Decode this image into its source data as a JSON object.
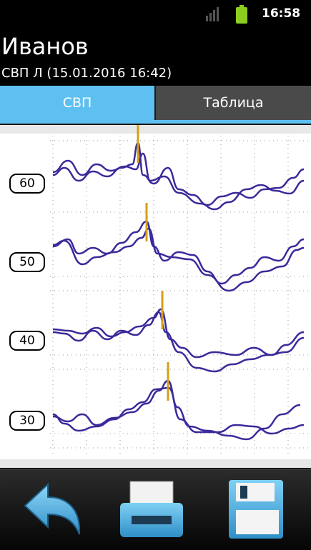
{
  "status": {
    "time": "16:58",
    "icons": [
      "signal-icon",
      "battery-icon"
    ]
  },
  "header": {
    "patient_name": "Иванов",
    "subtitle": "СВП Л (15.01.2016 16:42)"
  },
  "tabs": [
    {
      "label": "СВП",
      "active": true
    },
    {
      "label": "Таблица",
      "active": false
    }
  ],
  "trace_labels": [
    "60",
    "50",
    "40",
    "30"
  ],
  "colors": {
    "accent": "#5ec0f0",
    "trace": "#3a2a9a",
    "marker": "#d4a017"
  },
  "toolbar": {
    "icons": [
      "back-icon",
      "print-icon",
      "save-icon"
    ]
  }
}
